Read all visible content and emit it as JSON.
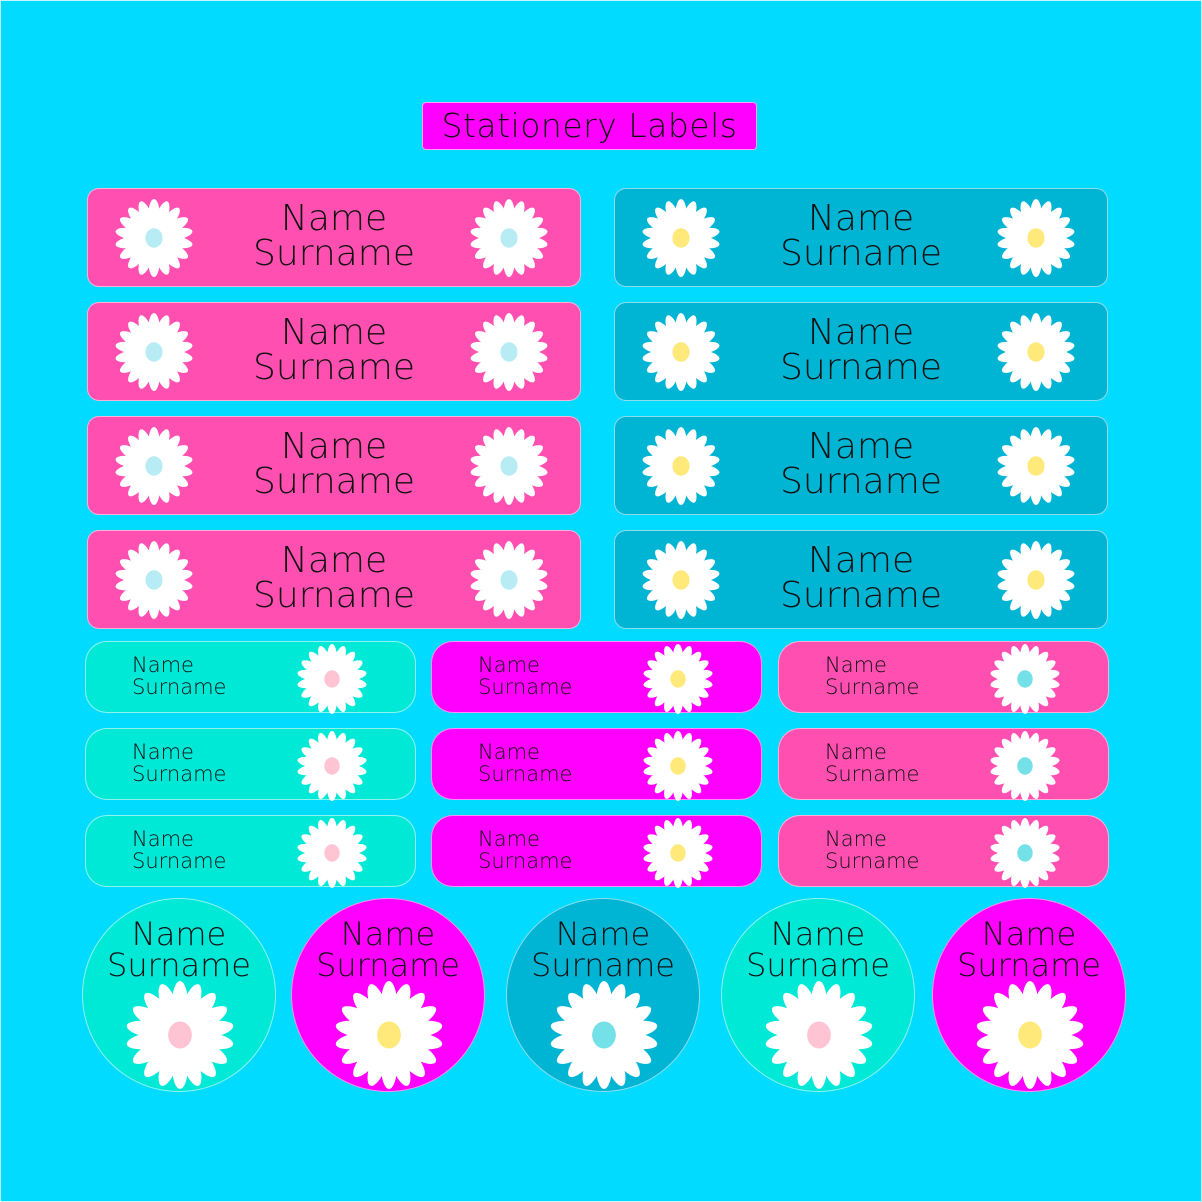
{
  "title": "Stationery Labels",
  "colors": {
    "background": "#00DBFF",
    "pink": "#FF4FB0",
    "teal": "#00B4D4",
    "aqua": "#00E8D6",
    "magenta": "#FF00FF",
    "center_lightblue": "#B8ECF4",
    "center_yellow": "#FFE97A",
    "center_pink": "#FFC4D4",
    "center_cyan": "#74E0E8"
  },
  "large_labels": [
    {
      "name": "Name",
      "surname": "Surname",
      "color": "#FF4FB0",
      "center": "#B8ECF4"
    },
    {
      "name": "Name",
      "surname": "Surname",
      "color": "#00B4D4",
      "center": "#FFE97A"
    },
    {
      "name": "Name",
      "surname": "Surname",
      "color": "#FF4FB0",
      "center": "#B8ECF4"
    },
    {
      "name": "Name",
      "surname": "Surname",
      "color": "#00B4D4",
      "center": "#FFE97A"
    },
    {
      "name": "Name",
      "surname": "Surname",
      "color": "#FF4FB0",
      "center": "#B8ECF4"
    },
    {
      "name": "Name",
      "surname": "Surname",
      "color": "#00B4D4",
      "center": "#FFE97A"
    },
    {
      "name": "Name",
      "surname": "Surname",
      "color": "#FF4FB0",
      "center": "#B8ECF4"
    },
    {
      "name": "Name",
      "surname": "Surname",
      "color": "#00B4D4",
      "center": "#FFE97A"
    }
  ],
  "small_labels": [
    {
      "name": "Name",
      "surname": "Surname",
      "color": "#00E8D6",
      "center": "#FFC4D4"
    },
    {
      "name": "Name",
      "surname": "Surname",
      "color": "#FF00FF",
      "center": "#FFE97A"
    },
    {
      "name": "Name",
      "surname": "Surname",
      "color": "#FF4FB0",
      "center": "#74E0E8"
    },
    {
      "name": "Name",
      "surname": "Surname",
      "color": "#00E8D6",
      "center": "#FFC4D4"
    },
    {
      "name": "Name",
      "surname": "Surname",
      "color": "#FF00FF",
      "center": "#FFE97A"
    },
    {
      "name": "Name",
      "surname": "Surname",
      "color": "#FF4FB0",
      "center": "#74E0E8"
    },
    {
      "name": "Name",
      "surname": "Surname",
      "color": "#00E8D6",
      "center": "#FFC4D4"
    },
    {
      "name": "Name",
      "surname": "Surname",
      "color": "#FF00FF",
      "center": "#FFE97A"
    },
    {
      "name": "Name",
      "surname": "Surname",
      "color": "#FF4FB0",
      "center": "#74E0E8"
    }
  ],
  "round_labels": [
    {
      "name": "Name",
      "surname": "Surname",
      "color": "#00E8D6",
      "center": "#FFC4D4"
    },
    {
      "name": "Name",
      "surname": "Surname",
      "color": "#FF00FF",
      "center": "#FFE97A"
    },
    {
      "name": "Name",
      "surname": "Surname",
      "color": "#00B4D4",
      "center": "#74E0E8"
    },
    {
      "name": "Name",
      "surname": "Surname",
      "color": "#00E8D6",
      "center": "#FFC4D4"
    },
    {
      "name": "Name",
      "surname": "Surname",
      "color": "#FF00FF",
      "center": "#FFE97A"
    }
  ]
}
